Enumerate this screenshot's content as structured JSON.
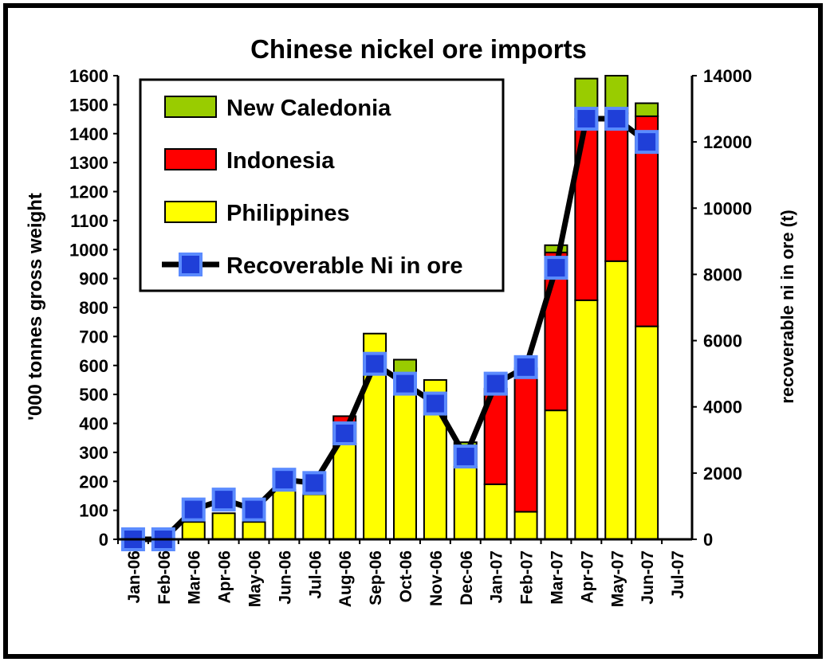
{
  "chart_data": {
    "type": "bar",
    "title": "Chinese nickel ore imports",
    "ylabel": "'000 tonnes gross weight",
    "y2label": "recoverable ni in ore (t)",
    "ylim": [
      0,
      1600
    ],
    "y2lim": [
      0,
      14000
    ],
    "yticks": [
      "0",
      "100",
      "200",
      "300",
      "400",
      "500",
      "600",
      "700",
      "800",
      "900",
      "1000",
      "1100",
      "1200",
      "1300",
      "1400",
      "1500",
      "1600"
    ],
    "y2ticks": [
      "0",
      "2000",
      "4000",
      "6000",
      "8000",
      "10000",
      "12000",
      "14000"
    ],
    "categories": [
      "Jan-06",
      "Feb-06",
      "Mar-06",
      "Apr-06",
      "May-06",
      "Jun-06",
      "Jul-06",
      "Aug-06",
      "Sep-06",
      "Oct-06",
      "Nov-06",
      "Dec-06",
      "Jan-07",
      "Feb-07",
      "Mar-07",
      "Apr-07",
      "May-07",
      "Jun-07",
      "Jul-07"
    ],
    "stacked": true,
    "series": [
      {
        "name": "Philippines",
        "color": "#ffff00",
        "values": [
          0,
          0,
          60,
          90,
          60,
          170,
          155,
          330,
          710,
          520,
          550,
          250,
          190,
          95,
          445,
          825,
          960,
          735,
          0
        ]
      },
      {
        "name": "Indonesia",
        "color": "#ff0000",
        "values": [
          0,
          0,
          0,
          0,
          0,
          0,
          0,
          95,
          0,
          0,
          0,
          0,
          330,
          495,
          545,
          625,
          510,
          725,
          0
        ]
      },
      {
        "name": "New Caledonia",
        "color": "#99cc00",
        "values": [
          0,
          0,
          0,
          0,
          0,
          0,
          0,
          0,
          0,
          100,
          0,
          85,
          0,
          0,
          25,
          140,
          130,
          45,
          0
        ]
      }
    ],
    "line_series": {
      "name": "Recoverable Ni in ore",
      "axis": "right",
      "line_color": "#000000",
      "marker_fill": "#1f3fd8",
      "marker_edge": "#5b8bff",
      "values": [
        0,
        0,
        900,
        1200,
        900,
        1800,
        1700,
        3200,
        5300,
        4700,
        4100,
        2500,
        4700,
        5200,
        8200,
        12700,
        12700,
        12000,
        null
      ]
    },
    "legend": {
      "placement": "top-left",
      "entries": [
        "New Caledonia",
        "Indonesia",
        "Philippines",
        "Recoverable Ni in ore"
      ]
    }
  }
}
